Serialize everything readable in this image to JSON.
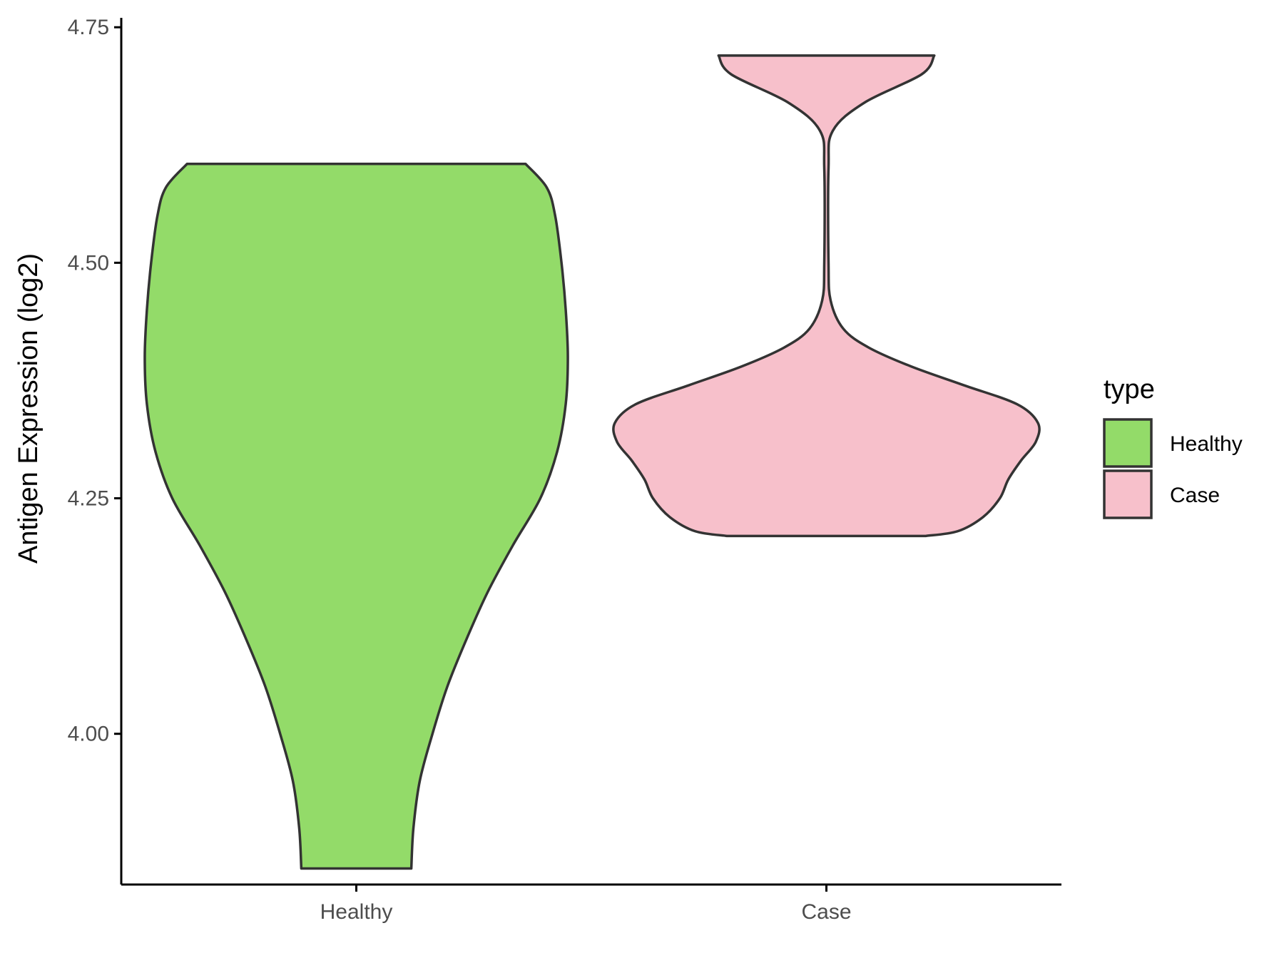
{
  "chart_data": {
    "type": "violin",
    "title": "",
    "xlabel": "",
    "ylabel": "Antigen Expression (log2)",
    "ylim": [
      3.84,
      4.76
    ],
    "yticks": [
      "4.00",
      "4.25",
      "4.50",
      "4.75"
    ],
    "ytick_values": [
      4.0,
      4.25,
      4.5,
      4.75
    ],
    "categories": [
      "Healthy",
      "Case"
    ],
    "grid": false,
    "legend": {
      "title": "type",
      "placement": "right",
      "entries": [
        {
          "label": "Healthy",
          "color": "#93DB69"
        },
        {
          "label": "Case",
          "color": "#F7C0CB"
        }
      ]
    },
    "series": [
      {
        "category": "Healthy",
        "color": "#93DB69",
        "min": 3.857,
        "max": 4.605,
        "density": [
          {
            "y": 3.857,
            "w": 0.26
          },
          {
            "y": 3.9,
            "w": 0.27
          },
          {
            "y": 3.95,
            "w": 0.3
          },
          {
            "y": 4.0,
            "w": 0.36
          },
          {
            "y": 4.05,
            "w": 0.43
          },
          {
            "y": 4.1,
            "w": 0.52
          },
          {
            "y": 4.15,
            "w": 0.62
          },
          {
            "y": 4.2,
            "w": 0.74
          },
          {
            "y": 4.25,
            "w": 0.87
          },
          {
            "y": 4.3,
            "w": 0.95
          },
          {
            "y": 4.35,
            "w": 0.99
          },
          {
            "y": 4.4,
            "w": 1.0
          },
          {
            "y": 4.45,
            "w": 0.99
          },
          {
            "y": 4.5,
            "w": 0.97
          },
          {
            "y": 4.55,
            "w": 0.94
          },
          {
            "y": 4.58,
            "w": 0.9
          },
          {
            "y": 4.605,
            "w": 0.8
          }
        ]
      },
      {
        "category": "Case",
        "color": "#F7C0CB",
        "min": 4.21,
        "max": 4.72,
        "density": [
          {
            "y": 4.21,
            "w": 0.47
          },
          {
            "y": 4.215,
            "w": 0.62
          },
          {
            "y": 4.23,
            "w": 0.74
          },
          {
            "y": 4.25,
            "w": 0.82
          },
          {
            "y": 4.27,
            "w": 0.86
          },
          {
            "y": 4.29,
            "w": 0.92
          },
          {
            "y": 4.31,
            "w": 0.99
          },
          {
            "y": 4.33,
            "w": 1.0
          },
          {
            "y": 4.35,
            "w": 0.9
          },
          {
            "y": 4.37,
            "w": 0.65
          },
          {
            "y": 4.39,
            "w": 0.4
          },
          {
            "y": 4.41,
            "w": 0.2
          },
          {
            "y": 4.43,
            "w": 0.08
          },
          {
            "y": 4.46,
            "w": 0.02
          },
          {
            "y": 4.5,
            "w": 0.01
          },
          {
            "y": 4.6,
            "w": 0.01
          },
          {
            "y": 4.64,
            "w": 0.03
          },
          {
            "y": 4.67,
            "w": 0.18
          },
          {
            "y": 4.7,
            "w": 0.45
          },
          {
            "y": 4.72,
            "w": 0.51
          }
        ]
      }
    ]
  }
}
